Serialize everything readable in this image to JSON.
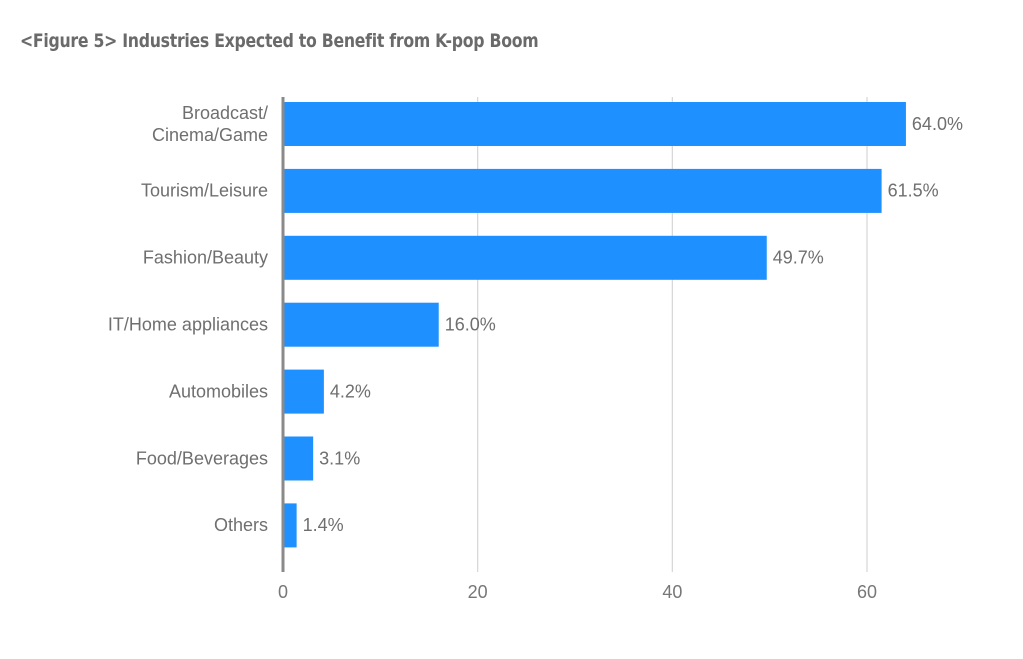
{
  "chart_data": {
    "type": "bar",
    "orientation": "horizontal",
    "title": "<Figure 5> Industries Expected to Benefit from K-pop Boom",
    "categories": [
      [
        "Broadcast/",
        "Cinema/Game"
      ],
      [
        "Tourism/Leisure"
      ],
      [
        "Fashion/Beauty"
      ],
      [
        "IT/Home appliances"
      ],
      [
        "Automobiles"
      ],
      [
        "Food/Beverages"
      ],
      [
        "Others"
      ]
    ],
    "values": [
      64.0,
      61.5,
      49.7,
      16.0,
      4.2,
      3.1,
      1.4
    ],
    "data_labels": [
      "64.0%",
      "61.5%",
      "49.7%",
      "16.0%",
      "4.2%",
      "3.1%",
      "1.4%"
    ],
    "xlabel": "",
    "ylabel": "",
    "xlim": [
      0,
      72
    ],
    "xticks": [
      0,
      20,
      40,
      60
    ],
    "xtick_labels": [
      "0",
      "20",
      "40",
      "60"
    ],
    "grid": true,
    "legend": "none",
    "colors": {
      "bar": "#1e90ff",
      "grid": "#d6d6d6",
      "axis": "#8a8a8a",
      "text": "#6f6f6f"
    }
  }
}
